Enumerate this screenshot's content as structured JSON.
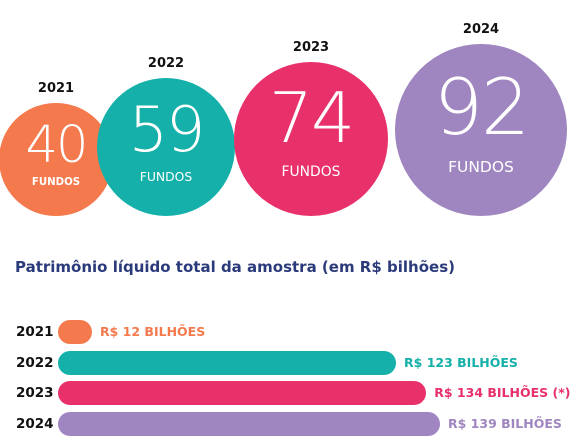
{
  "chart_data": [
    {
      "type": "bubble",
      "categories": [
        "2021",
        "2022",
        "2023",
        "2024"
      ],
      "values": [
        40,
        59,
        74,
        92
      ],
      "value_labels": [
        "40",
        "59",
        "74",
        "92"
      ],
      "unit_label": "FUNDOS",
      "colors": [
        "#f47a4e",
        "#14b0a9",
        "#e8306a",
        "#9f86c0"
      ]
    },
    {
      "type": "bar",
      "orientation": "horizontal",
      "title": "Patrimônio líquido total da amostra (em R$ bilhões)",
      "categories": [
        "2021",
        "2022",
        "2023",
        "2024"
      ],
      "values": [
        12,
        123,
        134,
        139
      ],
      "data_labels": [
        "R$ 12 BILHÕES",
        "R$ 123 BILHÕES",
        "R$ 134 BILHÕES (*)",
        "R$ 139 BILHÕES"
      ],
      "colors": [
        "#f47a4e",
        "#14b0a9",
        "#e8306a",
        "#9f86c0"
      ]
    }
  ]
}
